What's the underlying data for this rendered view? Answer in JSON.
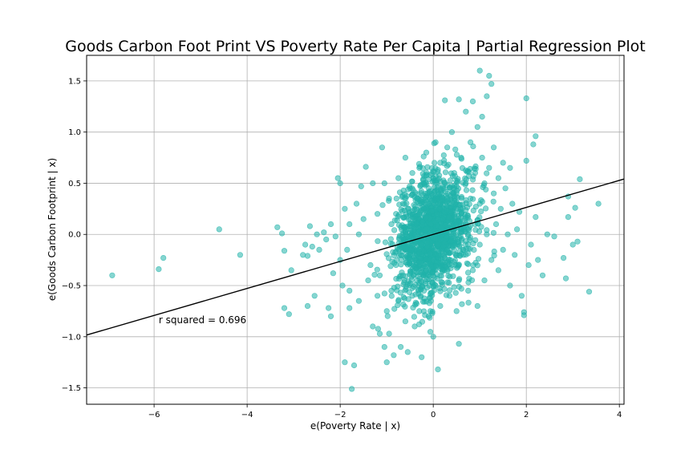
{
  "chart_data": {
    "type": "scatter",
    "title": "Goods Carbon Foot Print VS Poverty Rate Per Capita | Partial Regression Plot",
    "xlabel": "e(Poverty Rate | x)",
    "ylabel": "e(Goods Carbon Footprint | x)",
    "xlim": [
      -7.45,
      4.1
    ],
    "ylim": [
      -1.66,
      1.75
    ],
    "xticks": [
      -6,
      -4,
      -2,
      0,
      2,
      4
    ],
    "yticks": [
      -1.5,
      -1.0,
      -0.5,
      0.0,
      0.5,
      1.0,
      1.5
    ],
    "xtick_labels": [
      "−6",
      "−4",
      "−2",
      "0",
      "2",
      "4"
    ],
    "ytick_labels": [
      "−1.5",
      "−1.0",
      "−0.5",
      "0.0",
      "0.5",
      "1.0",
      "1.5"
    ],
    "grid": true,
    "point_color": "#20b2aa",
    "line_color": "#000000",
    "regression_line": {
      "slope": 0.132,
      "intercept": 0.0
    },
    "annotation": "r squared = 0.696",
    "annotation_position": {
      "x": -5.9,
      "y": -0.87
    },
    "points": [
      [
        -6.9,
        -0.4
      ],
      [
        -5.9,
        -0.34
      ],
      [
        -5.8,
        -0.23
      ],
      [
        -4.6,
        0.05
      ],
      [
        -4.15,
        -0.2
      ],
      [
        -3.35,
        0.07
      ],
      [
        -3.25,
        0.01
      ],
      [
        -3.2,
        -0.16
      ],
      [
        -3.2,
        -0.72
      ],
      [
        -3.1,
        -0.78
      ],
      [
        -3.05,
        -0.35
      ],
      [
        -2.8,
        -0.2
      ],
      [
        -2.75,
        -0.1
      ],
      [
        -2.7,
        -0.21
      ],
      [
        -2.7,
        -0.7
      ],
      [
        -2.65,
        0.08
      ],
      [
        -2.6,
        -0.12
      ],
      [
        -2.55,
        -0.6
      ],
      [
        -2.5,
        0.0
      ],
      [
        -2.45,
        -0.15
      ],
      [
        -2.35,
        0.02
      ],
      [
        -2.3,
        -0.05
      ],
      [
        -2.25,
        -0.72
      ],
      [
        -2.2,
        0.1
      ],
      [
        -2.2,
        -0.8
      ],
      [
        -2.15,
        -0.38
      ],
      [
        -2.1,
        -0.02
      ],
      [
        -2.05,
        0.55
      ],
      [
        -2.0,
        0.5
      ],
      [
        -2.0,
        -0.25
      ],
      [
        -1.95,
        -0.5
      ],
      [
        -1.9,
        0.25
      ],
      [
        -1.9,
        -1.25
      ],
      [
        -1.85,
        -0.15
      ],
      [
        -1.8,
        0.1
      ],
      [
        -1.8,
        -0.55
      ],
      [
        -1.8,
        -0.72
      ],
      [
        -1.75,
        -1.51
      ],
      [
        -1.7,
        -1.28
      ],
      [
        -1.65,
        0.3
      ],
      [
        -1.6,
        -0.65
      ],
      [
        -1.6,
        0.0
      ],
      [
        -1.55,
        0.47
      ],
      [
        -1.5,
        0.15
      ],
      [
        -1.45,
        0.66
      ],
      [
        -1.4,
        -0.45
      ],
      [
        -1.35,
        -0.3
      ],
      [
        -1.3,
        0.5
      ],
      [
        -1.3,
        -0.9
      ],
      [
        -1.2,
        -0.6
      ],
      [
        -1.2,
        0.2
      ],
      [
        -1.15,
        -0.97
      ],
      [
        -1.15,
        -0.4
      ],
      [
        -1.1,
        0.85
      ],
      [
        -1.05,
        0.5
      ],
      [
        -1.05,
        -1.1
      ],
      [
        -1.0,
        -1.25
      ],
      [
        -1.0,
        -0.75
      ],
      [
        -0.95,
        -0.97
      ],
      [
        -0.95,
        0.35
      ],
      [
        -0.9,
        -0.55
      ],
      [
        -0.9,
        0.1
      ],
      [
        -0.85,
        -1.18
      ],
      [
        -0.8,
        -0.3
      ],
      [
        -0.8,
        0.2
      ],
      [
        -0.75,
        -0.65
      ],
      [
        -0.75,
        0.55
      ],
      [
        -0.7,
        -1.1
      ],
      [
        -0.65,
        -0.4
      ],
      [
        -0.65,
        0.3
      ],
      [
        -0.6,
        0.75
      ],
      [
        -0.6,
        -0.85
      ],
      [
        -0.55,
        -1.15
      ],
      [
        -0.55,
        0.05
      ],
      [
        -0.5,
        -0.2
      ],
      [
        -0.5,
        0.45
      ],
      [
        -0.45,
        -0.6
      ],
      [
        -0.45,
        0.6
      ],
      [
        -0.4,
        -0.9
      ],
      [
        -0.4,
        0.15
      ],
      [
        -0.35,
        -0.45
      ],
      [
        -0.35,
        0.35
      ],
      [
        -0.3,
        -0.75
      ],
      [
        -0.3,
        0.65
      ],
      [
        -0.25,
        -1.2
      ],
      [
        -0.25,
        -0.1
      ],
      [
        -0.2,
        0.25
      ],
      [
        -0.2,
        -0.55
      ],
      [
        -0.15,
        0.8
      ],
      [
        -0.15,
        -0.35
      ],
      [
        -0.1,
        -0.8
      ],
      [
        -0.1,
        0.45
      ],
      [
        -0.05,
        0.1
      ],
      [
        -0.05,
        -0.65
      ],
      [
        0.0,
        0.55
      ],
      [
        0.0,
        -1.0
      ],
      [
        0.0,
        -0.25
      ],
      [
        0.05,
        0.9
      ],
      [
        0.05,
        -0.5
      ],
      [
        0.1,
        0.3
      ],
      [
        0.1,
        -1.32
      ],
      [
        0.1,
        -0.1
      ],
      [
        0.15,
        0.7
      ],
      [
        0.15,
        -0.7
      ],
      [
        0.2,
        0.15
      ],
      [
        0.2,
        -0.35
      ],
      [
        0.25,
        1.31
      ],
      [
        0.25,
        0.5
      ],
      [
        0.3,
        -0.15
      ],
      [
        0.3,
        0.85
      ],
      [
        0.35,
        -0.6
      ],
      [
        0.35,
        0.3
      ],
      [
        0.4,
        1.0
      ],
      [
        0.4,
        -0.3
      ],
      [
        0.45,
        0.6
      ],
      [
        0.45,
        0.05
      ],
      [
        0.5,
        -0.75
      ],
      [
        0.5,
        0.4
      ],
      [
        0.55,
        1.32
      ],
      [
        0.55,
        -0.45
      ],
      [
        0.55,
        -1.07
      ],
      [
        0.6,
        0.2
      ],
      [
        0.6,
        0.75
      ],
      [
        0.65,
        -0.2
      ],
      [
        0.7,
        0.5
      ],
      [
        0.7,
        1.2
      ],
      [
        0.75,
        -0.55
      ],
      [
        0.75,
        0.0
      ],
      [
        0.8,
        0.9
      ],
      [
        0.8,
        0.35
      ],
      [
        0.85,
        -0.35
      ],
      [
        0.85,
        1.3
      ],
      [
        0.9,
        0.6
      ],
      [
        0.9,
        0.1
      ],
      [
        0.95,
        1.05
      ],
      [
        0.95,
        -0.7
      ],
      [
        1.0,
        1.6
      ],
      [
        1.0,
        0.3
      ],
      [
        1.0,
        -0.1
      ],
      [
        1.05,
        0.75
      ],
      [
        1.05,
        1.15
      ],
      [
        1.1,
        0.5
      ],
      [
        1.1,
        -0.45
      ],
      [
        1.15,
        1.35
      ],
      [
        1.15,
        0.0
      ],
      [
        1.2,
        1.55
      ],
      [
        1.2,
        0.65
      ],
      [
        1.25,
        1.47
      ],
      [
        1.25,
        -0.25
      ],
      [
        1.3,
        0.4
      ],
      [
        1.3,
        0.85
      ],
      [
        1.35,
        0.1
      ],
      [
        1.4,
        0.55
      ],
      [
        1.4,
        -0.35
      ],
      [
        1.45,
        0.25
      ],
      [
        1.5,
        0.7
      ],
      [
        1.5,
        -0.15
      ],
      [
        1.55,
        0.45
      ],
      [
        1.6,
        0.0
      ],
      [
        1.65,
        0.65
      ],
      [
        1.65,
        -0.5
      ],
      [
        1.7,
        0.3
      ],
      [
        1.75,
        -0.2
      ],
      [
        1.8,
        0.05
      ],
      [
        1.85,
        0.22
      ],
      [
        1.9,
        -0.6
      ],
      [
        1.95,
        -0.76
      ],
      [
        1.95,
        -0.79
      ],
      [
        2.0,
        1.33
      ],
      [
        2.0,
        0.72
      ],
      [
        2.05,
        -0.3
      ],
      [
        2.1,
        -0.1
      ],
      [
        2.15,
        0.88
      ],
      [
        2.2,
        0.96
      ],
      [
        2.2,
        0.17
      ],
      [
        2.25,
        -0.25
      ],
      [
        2.35,
        -0.4
      ],
      [
        2.45,
        0.0
      ],
      [
        2.6,
        -0.02
      ],
      [
        2.8,
        -0.23
      ],
      [
        2.85,
        -0.43
      ],
      [
        2.9,
        0.17
      ],
      [
        2.9,
        0.37
      ],
      [
        3.0,
        -0.1
      ],
      [
        3.05,
        0.26
      ],
      [
        3.1,
        -0.07
      ],
      [
        3.15,
        0.54
      ],
      [
        3.35,
        -0.56
      ],
      [
        3.55,
        0.3
      ]
    ],
    "cloud": {
      "count": 1400,
      "sx": 0.42,
      "sy": 0.3,
      "rho": 0.25,
      "seed": 7
    }
  }
}
